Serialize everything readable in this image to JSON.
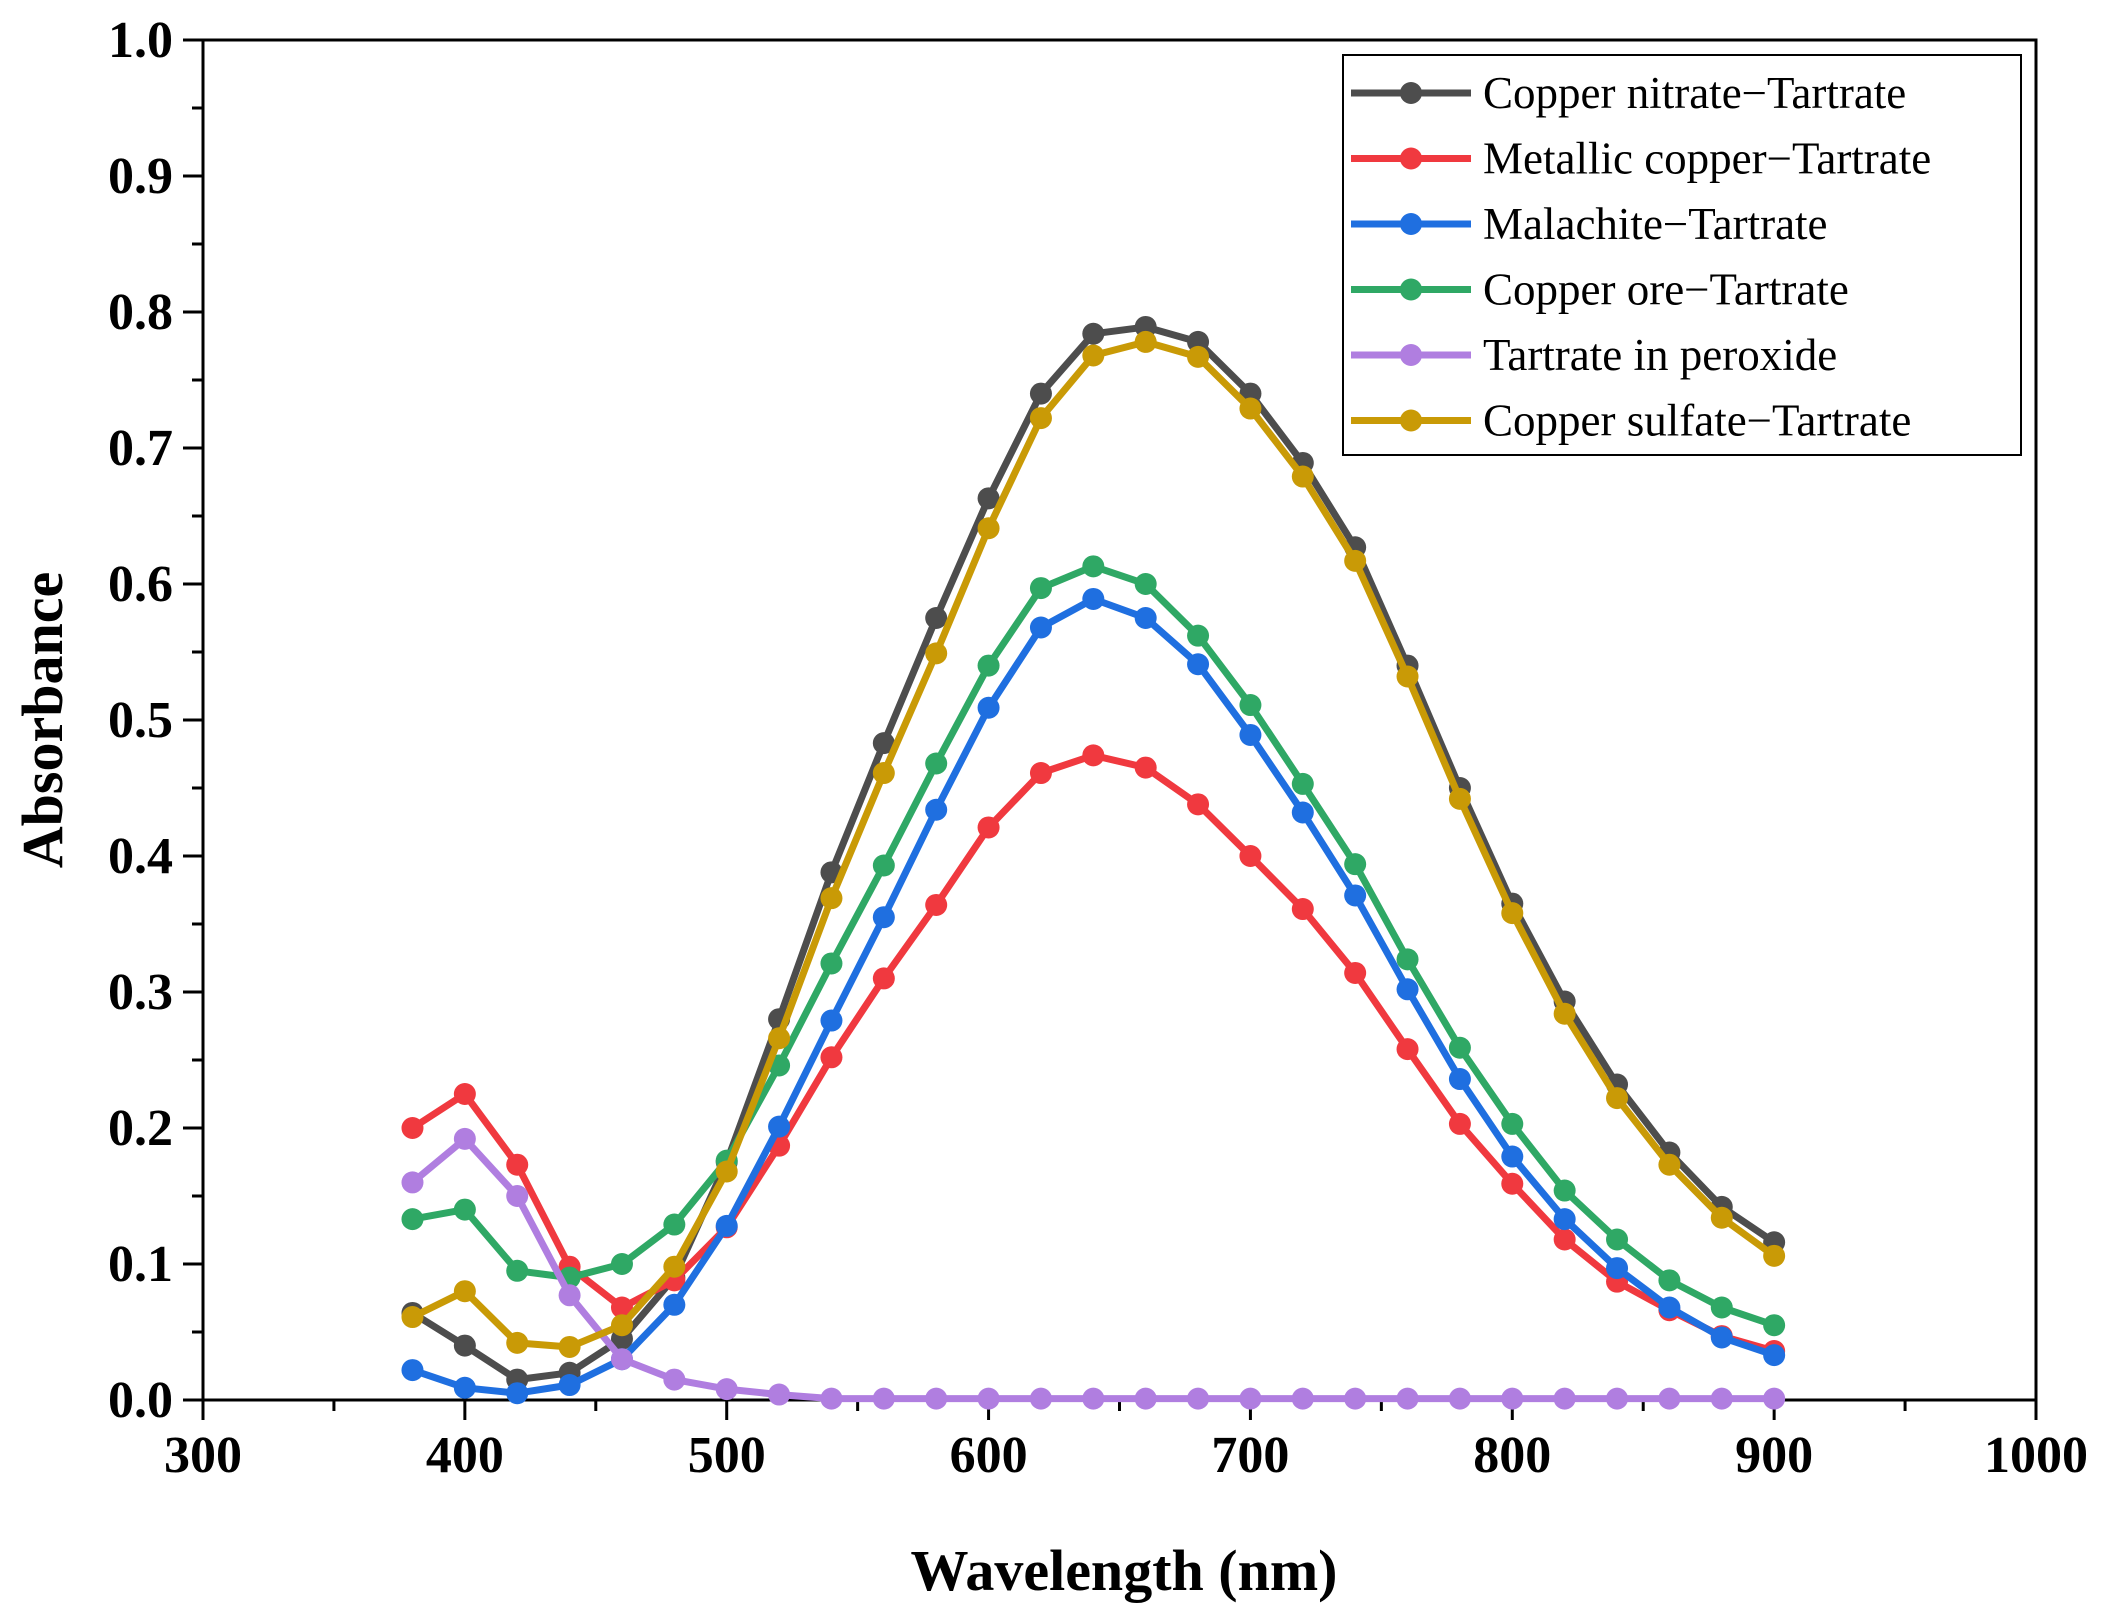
{
  "chart_data": {
    "type": "line",
    "xlabel": "Wavelength (nm)",
    "ylabel": "Absorbance",
    "xlim": [
      300,
      1000
    ],
    "ylim": [
      0.0,
      1.0
    ],
    "xticks": [
      300,
      400,
      500,
      600,
      700,
      800,
      900,
      1000
    ],
    "xtick_labels": [
      "300",
      "400",
      "500",
      "600",
      "700",
      "800",
      "900",
      "1000"
    ],
    "yticks": [
      0.0,
      0.1,
      0.2,
      0.3,
      0.4,
      0.5,
      0.6,
      0.7,
      0.8,
      0.9,
      1.0
    ],
    "ytick_labels": [
      "0.0",
      "0.1",
      "0.2",
      "0.3",
      "0.4",
      "0.5",
      "0.6",
      "0.7",
      "0.8",
      "0.9",
      "1.0"
    ],
    "legend_position": "top-right",
    "grid": false,
    "x": [
      380,
      400,
      420,
      440,
      460,
      480,
      500,
      520,
      540,
      560,
      580,
      600,
      620,
      640,
      660,
      680,
      700,
      720,
      740,
      760,
      780,
      800,
      820,
      840,
      860,
      880,
      900
    ],
    "series": [
      {
        "name": "Copper nitrate−Tartrate",
        "color": "#4d4d4d",
        "values": [
          0.064,
          0.04,
          0.015,
          0.02,
          0.045,
          0.09,
          0.175,
          0.28,
          0.388,
          0.483,
          0.575,
          0.663,
          0.74,
          0.784,
          0.789,
          0.778,
          0.74,
          0.689,
          0.627,
          0.54,
          0.45,
          0.365,
          0.293,
          0.232,
          0.182,
          0.142,
          0.116
        ]
      },
      {
        "name": "Metallic copper−Tartrate",
        "color": "#f0393f",
        "values": [
          0.2,
          0.225,
          0.173,
          0.098,
          0.068,
          0.088,
          0.127,
          0.187,
          0.252,
          0.31,
          0.364,
          0.421,
          0.461,
          0.474,
          0.465,
          0.438,
          0.4,
          0.361,
          0.314,
          0.258,
          0.203,
          0.159,
          0.118,
          0.087,
          0.066,
          0.047,
          0.036
        ]
      },
      {
        "name": "Malachite−Tartrate",
        "color": "#1f6fe0",
        "values": [
          0.022,
          0.009,
          0.005,
          0.011,
          0.03,
          0.07,
          0.128,
          0.201,
          0.279,
          0.355,
          0.434,
          0.509,
          0.568,
          0.589,
          0.575,
          0.541,
          0.489,
          0.432,
          0.371,
          0.302,
          0.236,
          0.179,
          0.133,
          0.097,
          0.068,
          0.046,
          0.033
        ]
      },
      {
        "name": "Copper ore−Tartrate",
        "color": "#2fa865",
        "values": [
          0.133,
          0.14,
          0.095,
          0.09,
          0.1,
          0.129,
          0.176,
          0.246,
          0.321,
          0.393,
          0.468,
          0.54,
          0.597,
          0.613,
          0.6,
          0.562,
          0.511,
          0.453,
          0.394,
          0.324,
          0.259,
          0.203,
          0.154,
          0.118,
          0.088,
          0.068,
          0.055
        ]
      },
      {
        "name": "Tartrate in peroxide",
        "color": "#b07ee0",
        "values": [
          0.16,
          0.192,
          0.15,
          0.077,
          0.03,
          0.015,
          0.008,
          0.004,
          0.001,
          0.001,
          0.001,
          0.001,
          0.001,
          0.001,
          0.001,
          0.001,
          0.001,
          0.001,
          0.001,
          0.001,
          0.001,
          0.001,
          0.001,
          0.001,
          0.001,
          0.001,
          0.001
        ]
      },
      {
        "name": "Copper sulfate−Tartrate",
        "color": "#c99a06",
        "values": [
          0.061,
          0.08,
          0.042,
          0.039,
          0.055,
          0.098,
          0.168,
          0.266,
          0.369,
          0.461,
          0.549,
          0.641,
          0.722,
          0.768,
          0.778,
          0.767,
          0.729,
          0.679,
          0.617,
          0.532,
          0.442,
          0.358,
          0.284,
          0.222,
          0.173,
          0.134,
          0.106
        ]
      }
    ]
  }
}
